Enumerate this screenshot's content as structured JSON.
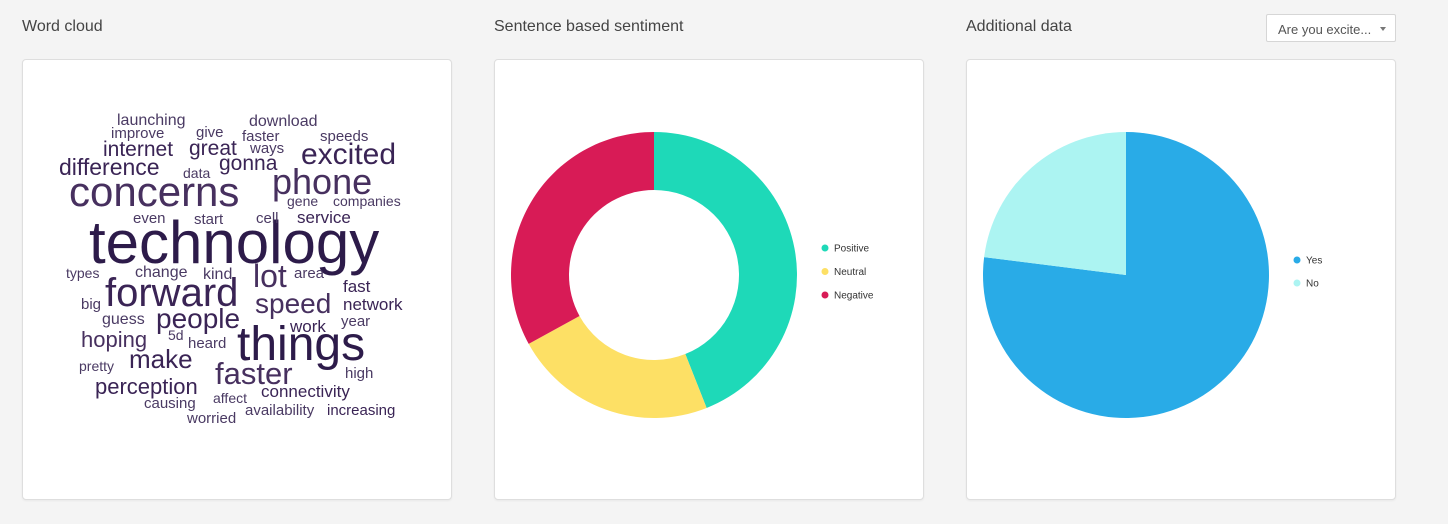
{
  "word_cloud": {
    "title": "Word cloud",
    "words": [
      {
        "text": "technology",
        "color": "#2d1b4a"
      },
      {
        "text": "concerns",
        "color": "#47305f"
      },
      {
        "text": "things",
        "color": "#2d1b4a"
      },
      {
        "text": "forward",
        "color": "#3a2455"
      },
      {
        "text": "phone",
        "color": "#47305f"
      },
      {
        "text": "excited",
        "color": "#3a2455"
      },
      {
        "text": "people",
        "color": "#3a2455"
      },
      {
        "text": "faster",
        "color": "#47305f"
      },
      {
        "text": "speed",
        "color": "#47305f"
      },
      {
        "text": "make",
        "color": "#3a2455"
      },
      {
        "text": "lot",
        "color": "#47305f"
      },
      {
        "text": "difference",
        "color": "#3a2455"
      },
      {
        "text": "perception",
        "color": "#3a2455"
      },
      {
        "text": "hoping",
        "color": "#47305f"
      },
      {
        "text": "internet",
        "color": "#3a2455"
      },
      {
        "text": "great",
        "color": "#3a2455"
      },
      {
        "text": "gonna",
        "color": "#3a2455"
      },
      {
        "text": "launching",
        "color": "#4a3a63"
      },
      {
        "text": "download",
        "color": "#4a3a63"
      },
      {
        "text": "improve",
        "color": "#4a3a63"
      },
      {
        "text": "give",
        "color": "#4a3a63"
      },
      {
        "text": "faster",
        "color": "#4a3a63"
      },
      {
        "text": "speeds",
        "color": "#4a3a63"
      },
      {
        "text": "ways",
        "color": "#4a3a63"
      },
      {
        "text": "data",
        "color": "#4a3a63"
      },
      {
        "text": "gene",
        "color": "#4a3a63"
      },
      {
        "text": "companies",
        "color": "#4a3a63"
      },
      {
        "text": "even",
        "color": "#4a3a63"
      },
      {
        "text": "start",
        "color": "#4a3a63"
      },
      {
        "text": "cell",
        "color": "#4a3a63"
      },
      {
        "text": "service",
        "color": "#3a2455"
      },
      {
        "text": "types",
        "color": "#4a3a63"
      },
      {
        "text": "change",
        "color": "#4a3a63"
      },
      {
        "text": "kind",
        "color": "#4a3a63"
      },
      {
        "text": "area",
        "color": "#4a3a63"
      },
      {
        "text": "fast",
        "color": "#3a2455"
      },
      {
        "text": "big",
        "color": "#4a3a63"
      },
      {
        "text": "network",
        "color": "#3a2455"
      },
      {
        "text": "guess",
        "color": "#4a3a63"
      },
      {
        "text": "work",
        "color": "#3a2455"
      },
      {
        "text": "year",
        "color": "#4a3a63"
      },
      {
        "text": "5d",
        "color": "#4a3a63"
      },
      {
        "text": "heard",
        "color": "#4a3a63"
      },
      {
        "text": "pretty",
        "color": "#4a3a63"
      },
      {
        "text": "high",
        "color": "#4a3a63"
      },
      {
        "text": "connectivity",
        "color": "#3a2455"
      },
      {
        "text": "causing",
        "color": "#4a3a63"
      },
      {
        "text": "affect",
        "color": "#4a3a63"
      },
      {
        "text": "availability",
        "color": "#4a3a63"
      },
      {
        "text": "increasing",
        "color": "#3a2455"
      },
      {
        "text": "worried",
        "color": "#4a3a63"
      }
    ]
  },
  "sentiment": {
    "title": "Sentence based sentiment",
    "chart_data": {
      "type": "pie",
      "style": "donut",
      "categories": [
        "Positive",
        "Neutral",
        "Negative"
      ],
      "values": [
        44,
        23,
        33
      ],
      "colors": [
        "#1ed9b8",
        "#fde065",
        "#d81b56"
      ],
      "legend_position": "right"
    }
  },
  "additional": {
    "title": "Additional data",
    "dropdown_value": "Are you excite...",
    "chart_data": {
      "type": "pie",
      "categories": [
        "Yes",
        "No"
      ],
      "values": [
        77,
        23
      ],
      "colors": [
        "#29abe7",
        "#acf4f2"
      ],
      "legend_position": "right"
    }
  }
}
